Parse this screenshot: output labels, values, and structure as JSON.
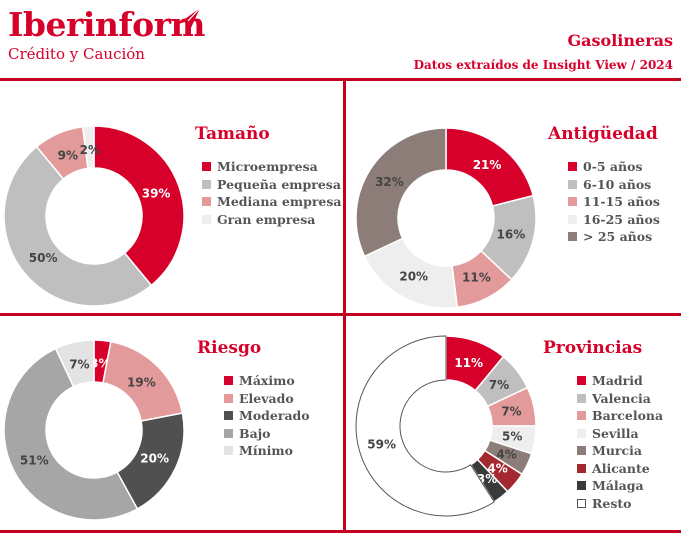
{
  "brand": {
    "name": "Iberinform",
    "tagline": "Crédito y Caución",
    "color": "#d6002a"
  },
  "header": {
    "title": "Gasolineras",
    "subtitle": "Datos extraídos de Insight View / 2024"
  },
  "chart_data": [
    {
      "type": "pie",
      "title": "Tamaño",
      "legend_position": "right",
      "slices": [
        {
          "label": "Microempresa",
          "value": 39,
          "color": "#d6002a"
        },
        {
          "label": "Pequeña empresa",
          "value": 50,
          "color": "#bfbfbf"
        },
        {
          "label": "Mediana empresa",
          "value": 9,
          "color": "#e39a9b"
        },
        {
          "label": "Gran empresa",
          "value": 2,
          "color": "#eeeeee"
        }
      ]
    },
    {
      "type": "pie",
      "title": "Antigüedad",
      "legend_position": "right",
      "slices": [
        {
          "label": "0-5 años",
          "value": 21,
          "color": "#d6002a"
        },
        {
          "label": "6-10 años",
          "value": 16,
          "color": "#bfbfbf"
        },
        {
          "label": "11-15 años",
          "value": 11,
          "color": "#e39a9b"
        },
        {
          "label": "16-25 años",
          "value": 20,
          "color": "#eeeeee"
        },
        {
          "label": "> 25 años",
          "value": 32,
          "color": "#8d7d78"
        }
      ]
    },
    {
      "type": "pie",
      "title": "Riesgo",
      "legend_position": "right",
      "slices": [
        {
          "label": "Máximo",
          "value": 3,
          "color": "#d6002a"
        },
        {
          "label": "Elevado",
          "value": 19,
          "color": "#e39a9b"
        },
        {
          "label": "Moderado",
          "value": 20,
          "color": "#505050"
        },
        {
          "label": "Bajo",
          "value": 51,
          "color": "#a6a6a6"
        },
        {
          "label": "Mínimo",
          "value": 7,
          "color": "#e3e3e3"
        }
      ]
    },
    {
      "type": "pie",
      "title": "Provincias",
      "legend_position": "right",
      "slices": [
        {
          "label": "Madrid",
          "value": 11,
          "color": "#d6002a"
        },
        {
          "label": "Valencia",
          "value": 7,
          "color": "#bfbfbf"
        },
        {
          "label": "Barcelona",
          "value": 7,
          "color": "#e39a9b"
        },
        {
          "label": "Sevilla",
          "value": 5,
          "color": "#eeeeee"
        },
        {
          "label": "Murcia",
          "value": 4,
          "color": "#8d7d78"
        },
        {
          "label": "Alicante",
          "value": 4,
          "color": "#a3282f"
        },
        {
          "label": "Málaga",
          "value": 3,
          "color": "#3a3a3a"
        },
        {
          "label": "Resto",
          "value": 59,
          "color": "#ffffff"
        }
      ]
    }
  ]
}
